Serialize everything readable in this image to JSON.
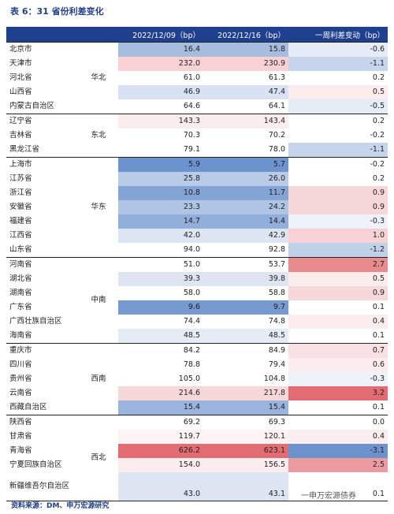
{
  "title": "表 6：31 省份利差变化",
  "headers": [
    "",
    "",
    "2022/12/09（bp）",
    "2022/12/16（bp）",
    "一周利差变动（bp）"
  ],
  "groups": [
    {
      "region": "华北",
      "rows": [
        {
          "province": "北京市",
          "v1": "16.4",
          "v2": "15.8",
          "chg": "-0.6",
          "c1": "#a6bddf",
          "c2": "#a6bddf",
          "c3": "#e6ecf6"
        },
        {
          "province": "天津市",
          "v1": "232.0",
          "v2": "230.9",
          "chg": "-1.1",
          "c1": "#f7d1d4",
          "c2": "#f7d1d4",
          "c3": "#c7d5ec"
        },
        {
          "province": "河北省",
          "v1": "61.0",
          "v2": "61.3",
          "chg": "0.2",
          "c1": "#ffffff",
          "c2": "#ffffff",
          "c3": "#ffffff"
        },
        {
          "province": "山西省",
          "v1": "46.9",
          "v2": "47.4",
          "chg": "0.5",
          "c1": "#d8e2f2",
          "c2": "#d8e2f2",
          "c3": "#fbeced"
        },
        {
          "province": "内蒙古自治区",
          "v1": "64.6",
          "v2": "64.1",
          "chg": "-0.5",
          "c1": "#ffffff",
          "c2": "#ffffff",
          "c3": "#e6ecf6"
        }
      ]
    },
    {
      "region": "东北",
      "rows": [
        {
          "province": "辽宁省",
          "v1": "143.3",
          "v2": "143.4",
          "chg": "0.2",
          "c1": "#fbeced",
          "c2": "#fbeced",
          "c3": "#ffffff"
        },
        {
          "province": "吉林省",
          "v1": "70.3",
          "v2": "70.2",
          "chg": "-0.2",
          "c1": "#ffffff",
          "c2": "#ffffff",
          "c3": "#ffffff"
        },
        {
          "province": "黑龙江省",
          "v1": "79.1",
          "v2": "78.0",
          "chg": "-1.1",
          "c1": "#ffffff",
          "c2": "#ffffff",
          "c3": "#c7d5ec"
        }
      ]
    },
    {
      "region": "华东",
      "rows": [
        {
          "province": "上海市",
          "v1": "5.9",
          "v2": "5.7",
          "chg": "-0.2",
          "c1": "#6d93cf",
          "c2": "#6d93cf",
          "c3": "#ffffff"
        },
        {
          "province": "江苏省",
          "v1": "25.8",
          "v2": "26.0",
          "chg": "0.2",
          "c1": "#b9cbe7",
          "c2": "#b9cbe7",
          "c3": "#ffffff"
        },
        {
          "province": "浙江省",
          "v1": "10.8",
          "v2": "11.7",
          "chg": "0.9",
          "c1": "#84a4d6",
          "c2": "#84a4d6",
          "c3": "#f7d8da"
        },
        {
          "province": "安徽省",
          "v1": "23.3",
          "v2": "24.2",
          "chg": "0.9",
          "c1": "#b0c5e4",
          "c2": "#b0c5e4",
          "c3": "#f7d8da"
        },
        {
          "province": "福建省",
          "v1": "14.7",
          "v2": "14.4",
          "chg": "-0.3",
          "c1": "#92aedb",
          "c2": "#92aedb",
          "c3": "#eef2f9"
        },
        {
          "province": "江西省",
          "v1": "42.0",
          "v2": "42.9",
          "chg": "1.0",
          "c1": "#dde5f3",
          "c2": "#dde5f3",
          "c3": "#f7d1d4"
        },
        {
          "province": "山东省",
          "v1": "94.0",
          "v2": "92.8",
          "chg": "-1.2",
          "c1": "#ffffff",
          "c2": "#ffffff",
          "c3": "#c2d1ea"
        }
      ]
    },
    {
      "region": "中南",
      "rows": [
        {
          "province": "河南省",
          "v1": "51.0",
          "v2": "53.7",
          "chg": "2.7",
          "c1": "#ffffff",
          "c2": "#ffffff",
          "c3": "#e98a8f"
        },
        {
          "province": "湖北省",
          "v1": "39.3",
          "v2": "39.8",
          "chg": "0.5",
          "c1": "#dde5f3",
          "c2": "#dde5f3",
          "c3": "#fbeced"
        },
        {
          "province": "湖南省",
          "v1": "58.0",
          "v2": "58.8",
          "chg": "0.9",
          "c1": "#ffffff",
          "c2": "#ffffff",
          "c3": "#f7d8da"
        },
        {
          "province": "广东省",
          "v1": "9.6",
          "v2": "9.7",
          "chg": "0.1",
          "c1": "#7799d2",
          "c2": "#7799d2",
          "c3": "#ffffff"
        },
        {
          "province": "广西壮族自治区",
          "v1": "74.4",
          "v2": "74.8",
          "chg": "0.4",
          "c1": "#ffffff",
          "c2": "#ffffff",
          "c3": "#fbeced"
        },
        {
          "province": "海南省",
          "v1": "48.5",
          "v2": "48.5",
          "chg": "0.1",
          "c1": "#e6ecf6",
          "c2": "#e6ecf6",
          "c3": "#ffffff"
        }
      ]
    },
    {
      "region": "西南",
      "rows": [
        {
          "province": "重庆市",
          "v1": "84.2",
          "v2": "84.9",
          "chg": "0.7",
          "c1": "#ffffff",
          "c2": "#ffffff",
          "c3": "#f9e0e2"
        },
        {
          "province": "四川省",
          "v1": "78.8",
          "v2": "79.4",
          "chg": "0.6",
          "c1": "#ffffff",
          "c2": "#ffffff",
          "c3": "#fbeced"
        },
        {
          "province": "贵州省",
          "v1": "105.0",
          "v2": "104.8",
          "chg": "-0.3",
          "c1": "#ffffff",
          "c2": "#ffffff",
          "c3": "#eef2f9"
        },
        {
          "province": "云南省",
          "v1": "214.6",
          "v2": "217.8",
          "chg": "3.2",
          "c1": "#f7d8da",
          "c2": "#f7d8da",
          "c3": "#e36c72"
        },
        {
          "province": "西藏自治区",
          "v1": "15.4",
          "v2": "15.4",
          "chg": "0.1",
          "c1": "#9ab4de",
          "c2": "#9ab4de",
          "c3": "#ffffff"
        }
      ]
    },
    {
      "region": "西北",
      "rows": [
        {
          "province": "陕西省",
          "v1": "69.2",
          "v2": "69.3",
          "chg": "0.0",
          "c1": "#ffffff",
          "c2": "#ffffff",
          "c3": "#ffffff"
        },
        {
          "province": "甘肃省",
          "v1": "119.7",
          "v2": "120.1",
          "chg": "0.4",
          "c1": "#fdf3f4",
          "c2": "#fdf3f4",
          "c3": "#fbeced"
        },
        {
          "province": "青海省",
          "v1": "626.2",
          "v2": "623.1",
          "chg": "-3.1",
          "c1": "#e36c72",
          "c2": "#e36c72",
          "c3": "#6d93cf"
        },
        {
          "province": "宁夏回族自治区",
          "v1": "154.0",
          "v2": "156.5",
          "chg": "2.5",
          "c1": "#fbeced",
          "c2": "#fbeced",
          "c3": "#ec9ba0"
        },
        {
          "province": "新疆维吾尔自治区",
          "v1": "43.0",
          "v2": "43.1",
          "chg": "0.1",
          "c1": "#dde5f3",
          "c2": "#dde5f3",
          "c3": "#ffffff",
          "tall": true
        }
      ]
    }
  ],
  "source": "资料来源：DM、申万宏源研究",
  "watermark": "一申万宏源债券"
}
